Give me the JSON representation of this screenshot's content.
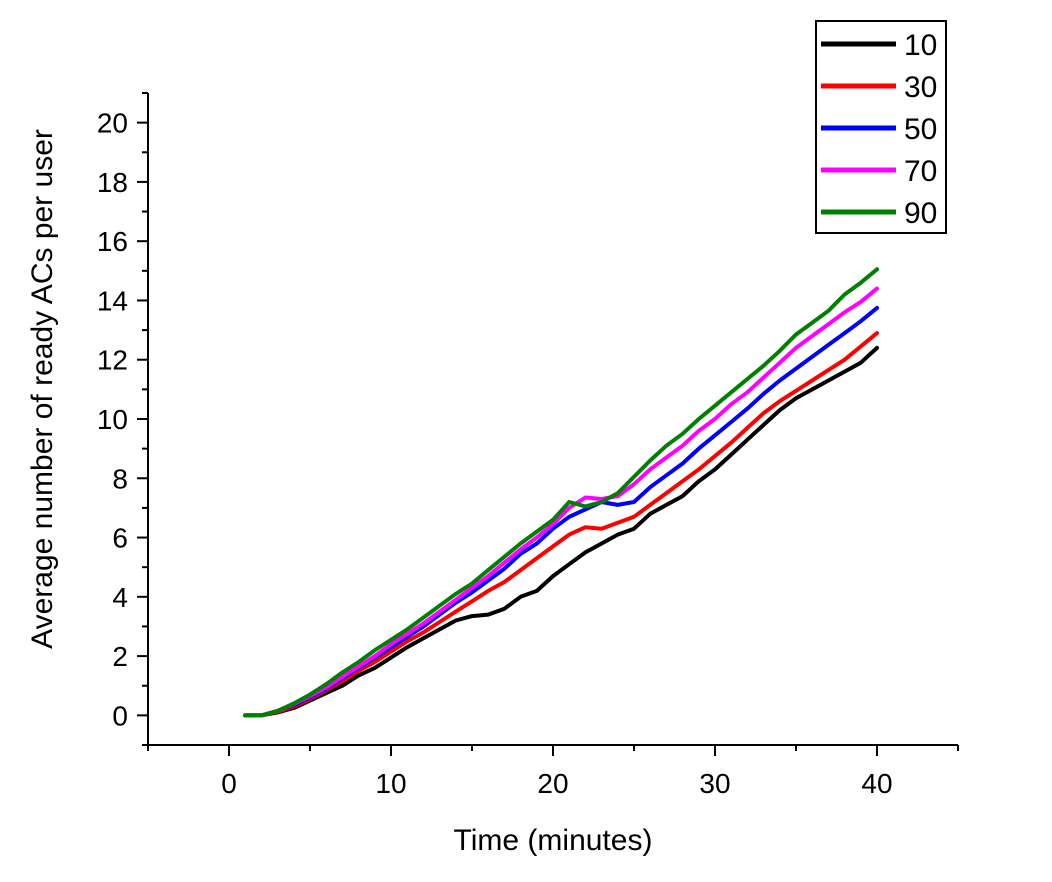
{
  "chart_data": {
    "type": "line",
    "xlabel": "Time (minutes)",
    "ylabel": "Average number of ready ACs per user",
    "xlim": [
      -5,
      45
    ],
    "ylim": [
      -1,
      21
    ],
    "x_ticks": [
      0,
      10,
      20,
      30,
      40
    ],
    "y_ticks": [
      0,
      2,
      4,
      6,
      8,
      10,
      12,
      14,
      16,
      18,
      20
    ],
    "x_tick_labels": [
      "0",
      "10",
      "20",
      "30",
      "40"
    ],
    "y_tick_labels": [
      "0",
      "2",
      "4",
      "6",
      "8",
      "10",
      "12",
      "14",
      "16",
      "18",
      "20"
    ],
    "legend_position": "top-right",
    "grid": false,
    "x": [
      1,
      2,
      3,
      4,
      5,
      6,
      7,
      8,
      9,
      10,
      11,
      12,
      13,
      14,
      15,
      16,
      17,
      18,
      19,
      20,
      21,
      22,
      23,
      24,
      25,
      26,
      27,
      28,
      29,
      30,
      31,
      32,
      33,
      34,
      35,
      36,
      37,
      38,
      39,
      40
    ],
    "series": [
      {
        "name": "10",
        "color": "#000000",
        "values": [
          0,
          0,
          0.1,
          0.25,
          0.5,
          0.75,
          1.0,
          1.35,
          1.6,
          1.95,
          2.3,
          2.6,
          2.9,
          3.2,
          3.35,
          3.4,
          3.6,
          4.0,
          4.2,
          4.7,
          5.1,
          5.5,
          5.8,
          6.1,
          6.3,
          6.8,
          7.1,
          7.4,
          7.9,
          8.3,
          8.8,
          9.3,
          9.8,
          10.3,
          10.7,
          11.0,
          11.3,
          11.6,
          11.9,
          12.4
        ]
      },
      {
        "name": "30",
        "color": "#ff0000",
        "values": [
          0,
          0,
          0.12,
          0.3,
          0.55,
          0.85,
          1.15,
          1.5,
          1.8,
          2.15,
          2.5,
          2.8,
          3.15,
          3.5,
          3.85,
          4.2,
          4.5,
          4.9,
          5.3,
          5.7,
          6.1,
          6.35,
          6.3,
          6.5,
          6.7,
          7.1,
          7.5,
          7.9,
          8.3,
          8.75,
          9.2,
          9.7,
          10.2,
          10.6,
          10.95,
          11.3,
          11.65,
          12.0,
          12.45,
          12.9
        ]
      },
      {
        "name": "50",
        "color": "#0000ff",
        "values": [
          0,
          0,
          0.15,
          0.35,
          0.6,
          0.9,
          1.25,
          1.6,
          1.95,
          2.3,
          2.65,
          3.0,
          3.4,
          3.8,
          4.15,
          4.55,
          4.95,
          5.45,
          5.8,
          6.3,
          6.7,
          6.95,
          7.2,
          7.1,
          7.2,
          7.7,
          8.1,
          8.5,
          9.0,
          9.45,
          9.9,
          10.35,
          10.85,
          11.3,
          11.7,
          12.1,
          12.5,
          12.9,
          13.3,
          13.75
        ]
      },
      {
        "name": "70",
        "color": "#ff00ff",
        "values": [
          0,
          0,
          0.15,
          0.38,
          0.65,
          0.95,
          1.3,
          1.65,
          2.0,
          2.4,
          2.75,
          3.1,
          3.5,
          3.9,
          4.3,
          4.7,
          5.15,
          5.6,
          6.0,
          6.45,
          7.0,
          7.35,
          7.3,
          7.4,
          7.8,
          8.3,
          8.7,
          9.1,
          9.6,
          10.0,
          10.5,
          10.9,
          11.4,
          11.9,
          12.4,
          12.8,
          13.2,
          13.6,
          13.95,
          14.4
        ]
      },
      {
        "name": "90",
        "color": "#008000",
        "values": [
          0,
          0,
          0.15,
          0.4,
          0.7,
          1.05,
          1.45,
          1.8,
          2.2,
          2.55,
          2.9,
          3.3,
          3.7,
          4.1,
          4.45,
          4.9,
          5.35,
          5.8,
          6.2,
          6.6,
          7.2,
          7.05,
          7.2,
          7.5,
          8.05,
          8.6,
          9.1,
          9.5,
          10.0,
          10.45,
          10.9,
          11.35,
          11.8,
          12.3,
          12.85,
          13.25,
          13.65,
          14.2,
          14.6,
          15.05
        ]
      }
    ]
  }
}
